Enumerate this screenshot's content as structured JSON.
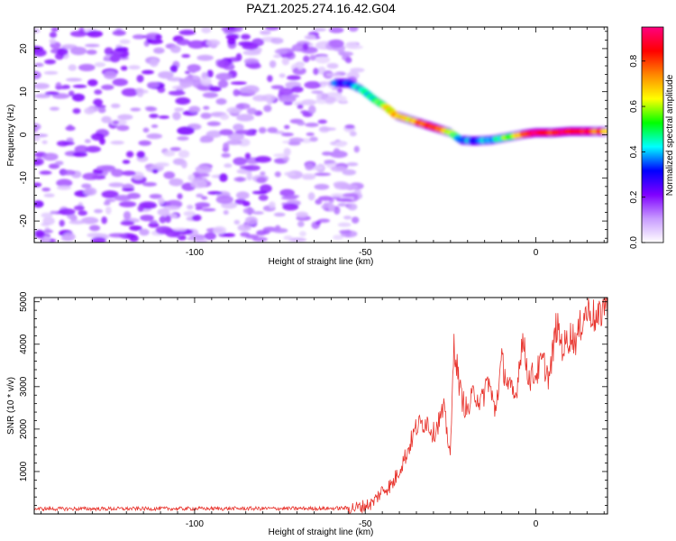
{
  "title": "PAZ1.2025.274.16.42.G04",
  "chart_data": [
    {
      "type": "heatmap",
      "xlabel": "Height of straight line (km)",
      "ylabel": "Frequency (Hz)",
      "xlim": [
        -147,
        21
      ],
      "ylim": [
        -25,
        25
      ],
      "xticks": [
        -100,
        -50,
        0
      ],
      "yticks": [
        -20,
        -10,
        0,
        10,
        20
      ],
      "colorbar": {
        "label": "Normalized spectral amplitude",
        "range": [
          0,
          0.95
        ],
        "ticks": [
          "0.0",
          "0.2",
          "0.4",
          "0.6",
          "0.8"
        ],
        "colors": [
          "#ffffff",
          "#c89bff",
          "#7f00ff",
          "#0000ff",
          "#00ffff",
          "#00ff00",
          "#ffff00",
          "#ff8800",
          "#ff0000",
          "#ff0080"
        ]
      },
      "noise_region_x": [
        -147,
        -52
      ],
      "ridge": {
        "x": [
          -59,
          -55,
          -51,
          -47,
          -44,
          -41,
          -37,
          -33,
          -29,
          -25,
          -22,
          -18,
          -13,
          -8,
          -3,
          0,
          5,
          10,
          15,
          21
        ],
        "freq_hz": [
          12,
          12,
          10.5,
          8,
          6.5,
          4.5,
          3.5,
          2.5,
          1.5,
          0.5,
          -1.2,
          -1.4,
          -1.2,
          -0.5,
          0.2,
          0.5,
          0.5,
          0.8,
          0.8,
          0.8
        ],
        "amplitude": [
          0.3,
          0.35,
          0.4,
          0.45,
          0.6,
          0.7,
          0.65,
          0.8,
          0.85,
          0.6,
          0.4,
          0.35,
          0.4,
          0.55,
          0.75,
          0.9,
          0.85,
          0.9,
          0.85,
          0.7
        ]
      }
    },
    {
      "type": "line",
      "xlabel": "Height of straight line (km)",
      "ylabel": "SNR (10 * v/v)",
      "xlim": [
        -147,
        21
      ],
      "ylim": [
        0,
        5100
      ],
      "xticks": [
        -100,
        -50,
        0
      ],
      "yticks": [
        1000,
        2000,
        3000,
        4000,
        5000
      ],
      "series": [
        {
          "name": "SNR",
          "color": "#e8332c",
          "x": [
            -147,
            -60,
            -52,
            -48,
            -45,
            -42,
            -38,
            -35,
            -32,
            -30,
            -27,
            -25,
            -24,
            -22,
            -20,
            -18,
            -16,
            -14,
            -12,
            -10,
            -8,
            -6,
            -4,
            -2,
            0,
            2,
            4,
            6,
            8,
            10,
            12,
            14,
            16,
            18,
            20
          ],
          "y": [
            120,
            130,
            150,
            250,
            550,
            700,
            1400,
            2050,
            2200,
            1900,
            2450,
            1400,
            4050,
            2800,
            2400,
            2900,
            2600,
            3200,
            2400,
            3600,
            3000,
            2700,
            4150,
            3200,
            3300,
            3600,
            3200,
            4450,
            3900,
            4200,
            4100,
            4700,
            4800,
            4500,
            4950
          ]
        }
      ]
    }
  ]
}
